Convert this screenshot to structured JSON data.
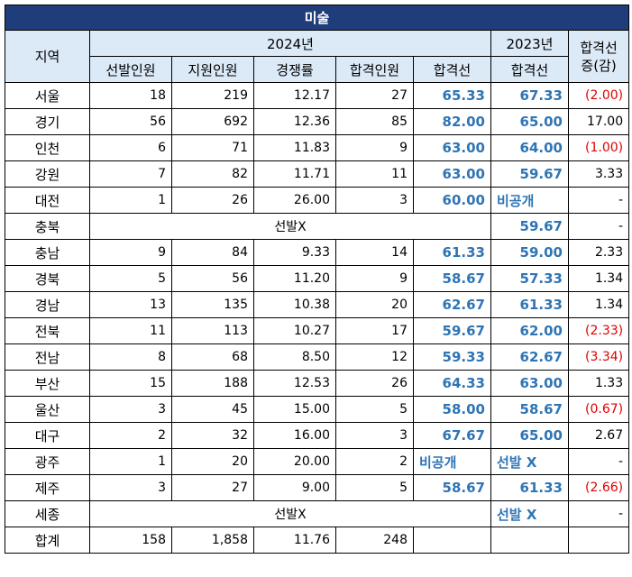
{
  "title": "미술",
  "headers": {
    "region": "지역",
    "y2024": "2024년",
    "y2023": "2023년",
    "diff": "합격선\n증(감)",
    "selected": "선발인원",
    "applicants": "지원인원",
    "ratio": "경쟁률",
    "passed": "합격인원",
    "cutoff2024": "합격선",
    "cutoff2023": "합격선"
  },
  "no_selection_text": "선발X",
  "rows": [
    {
      "region": "서울",
      "selected": "18",
      "applicants": "219",
      "ratio": "12.17",
      "passed": "27",
      "cutoff2024": "65.33",
      "cutoff2023": "67.33",
      "diff": "(2.00)",
      "neg": true
    },
    {
      "region": "경기",
      "selected": "56",
      "applicants": "692",
      "ratio": "12.36",
      "passed": "85",
      "cutoff2024": "82.00",
      "cutoff2023": "65.00",
      "diff": "17.00",
      "neg": false
    },
    {
      "region": "인천",
      "selected": "6",
      "applicants": "71",
      "ratio": "11.83",
      "passed": "9",
      "cutoff2024": "63.00",
      "cutoff2023": "64.00",
      "diff": "(1.00)",
      "neg": true
    },
    {
      "region": "강원",
      "selected": "7",
      "applicants": "82",
      "ratio": "11.71",
      "passed": "11",
      "cutoff2024": "63.00",
      "cutoff2023": "59.67",
      "diff": "3.33",
      "neg": false
    },
    {
      "region": "대전",
      "selected": "1",
      "applicants": "26",
      "ratio": "26.00",
      "passed": "3",
      "cutoff2024": "60.00",
      "cutoff2023": "비공개",
      "diff": "-",
      "neg": false
    },
    {
      "region": "충북",
      "merged": true,
      "cutoff2023": "59.67",
      "diff": "-",
      "neg": false
    },
    {
      "region": "충남",
      "selected": "9",
      "applicants": "84",
      "ratio": "9.33",
      "passed": "14",
      "cutoff2024": "61.33",
      "cutoff2023": "59.00",
      "diff": "2.33",
      "neg": false
    },
    {
      "region": "경북",
      "selected": "5",
      "applicants": "56",
      "ratio": "11.20",
      "passed": "9",
      "cutoff2024": "58.67",
      "cutoff2023": "57.33",
      "diff": "1.34",
      "neg": false
    },
    {
      "region": "경남",
      "selected": "13",
      "applicants": "135",
      "ratio": "10.38",
      "passed": "20",
      "cutoff2024": "62.67",
      "cutoff2023": "61.33",
      "diff": "1.34",
      "neg": false
    },
    {
      "region": "전북",
      "selected": "11",
      "applicants": "113",
      "ratio": "10.27",
      "passed": "17",
      "cutoff2024": "59.67",
      "cutoff2023": "62.00",
      "diff": "(2.33)",
      "neg": true
    },
    {
      "region": "전남",
      "selected": "8",
      "applicants": "68",
      "ratio": "8.50",
      "passed": "12",
      "cutoff2024": "59.33",
      "cutoff2023": "62.67",
      "diff": "(3.34)",
      "neg": true
    },
    {
      "region": "부산",
      "selected": "15",
      "applicants": "188",
      "ratio": "12.53",
      "passed": "26",
      "cutoff2024": "64.33",
      "cutoff2023": "63.00",
      "diff": "1.33",
      "neg": false
    },
    {
      "region": "울산",
      "selected": "3",
      "applicants": "45",
      "ratio": "15.00",
      "passed": "5",
      "cutoff2024": "58.00",
      "cutoff2023": "58.67",
      "diff": "(0.67)",
      "neg": true
    },
    {
      "region": "대구",
      "selected": "2",
      "applicants": "32",
      "ratio": "16.00",
      "passed": "3",
      "cutoff2024": "67.67",
      "cutoff2023": "65.00",
      "diff": "2.67",
      "neg": false
    },
    {
      "region": "광주",
      "selected": "1",
      "applicants": "20",
      "ratio": "20.00",
      "passed": "2",
      "cutoff2024": "비공개",
      "cutoff2023": "선발 X",
      "diff": "-",
      "neg": false
    },
    {
      "region": "제주",
      "selected": "3",
      "applicants": "27",
      "ratio": "9.00",
      "passed": "5",
      "cutoff2024": "58.67",
      "cutoff2023": "61.33",
      "diff": "(2.66)",
      "neg": true
    },
    {
      "region": "세종",
      "merged": true,
      "cutoff2023": "선발 X",
      "diff": "-",
      "neg": false
    },
    {
      "region": "합계",
      "total": true,
      "selected": "158",
      "applicants": "1,858",
      "ratio": "11.76",
      "passed": "248",
      "cutoff2024": "",
      "cutoff2023": "",
      "diff": ""
    }
  ]
}
